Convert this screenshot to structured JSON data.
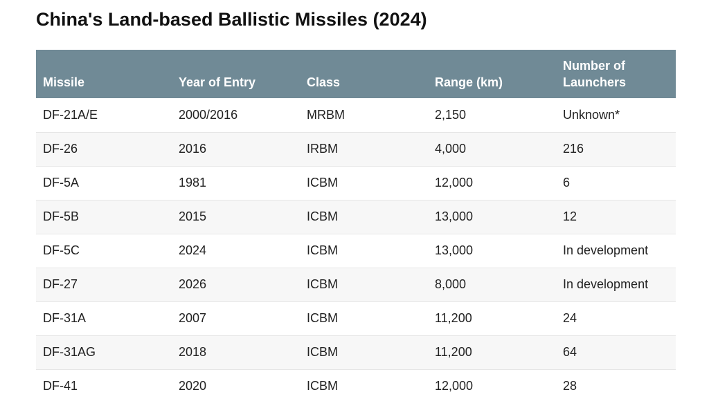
{
  "title": "China's Land-based Ballistic Missiles (2024)",
  "table": {
    "headers": [
      "Missile",
      "Year of Entry",
      "Class",
      "Range (km)",
      "Number of\nLaunchers"
    ],
    "rows": [
      [
        "DF-21A/E",
        "2000/2016",
        "MRBM",
        "2,150",
        "Unknown*"
      ],
      [
        "DF-26",
        "2016",
        "IRBM",
        "4,000",
        "216"
      ],
      [
        "DF-5A",
        "1981",
        "ICBM",
        "12,000",
        "6"
      ],
      [
        "DF-5B",
        "2015",
        "ICBM",
        "13,000",
        "12"
      ],
      [
        "DF-5C",
        "2024",
        "ICBM",
        "13,000",
        "In development"
      ],
      [
        "DF-27",
        "2026",
        "ICBM",
        "8,000",
        "In development"
      ],
      [
        "DF-31A",
        "2007",
        "ICBM",
        "11,200",
        "24"
      ],
      [
        "DF-31AG",
        "2018",
        "ICBM",
        "11,200",
        "64"
      ],
      [
        "DF-41",
        "2020",
        "ICBM",
        "12,000",
        "28"
      ]
    ]
  },
  "colors": {
    "header_bg": "#708a96",
    "header_text": "#ffffff",
    "stripe_bg": "#f7f7f7",
    "row_bg": "#ffffff"
  }
}
